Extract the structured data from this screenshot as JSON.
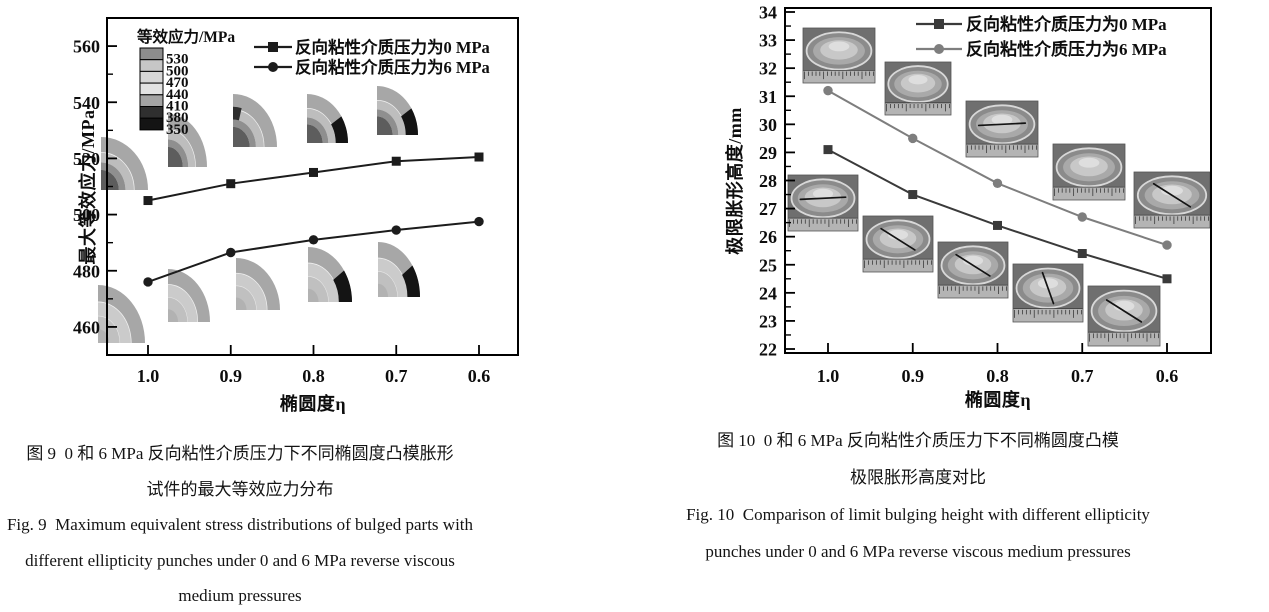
{
  "figures": {
    "left": {
      "caption_cn_line1": "图 9  0 和 6 MPa 反向粘性介质压力下不同椭圆度凸模胀形",
      "caption_cn_line2": "试件的最大等效应力分布",
      "caption_en_line1": "Fig. 9  Maximum equivalent stress distributions of bulged parts with",
      "caption_en_line2": "different ellipticity punches under 0 and 6 MPa reverse viscous",
      "caption_en_line3": "medium pressures"
    },
    "right": {
      "caption_cn_line1": "图 10  0 和 6 MPa 反向粘性介质压力下不同椭圆度凸模",
      "caption_cn_line2": "极限胀形高度对比",
      "caption_en_line1": "Fig. 10  Comparison of limit bulging height with different ellipticity",
      "caption_en_line2": "punches under 0 and 6 MPa reverse viscous medium pressures"
    }
  },
  "chart_data": [
    {
      "id": "fig9",
      "type": "line",
      "title": "",
      "xlabel": "椭圆度η",
      "ylabel": "最大等效应力/MPa",
      "x": [
        1.0,
        0.9,
        0.8,
        0.7,
        0.6
      ],
      "x_axis_direction": "decreasing",
      "ylim": [
        450,
        570
      ],
      "yticks": [
        460,
        480,
        500,
        520,
        540,
        560
      ],
      "ytick_minor_step": 10,
      "grid": false,
      "legend_position": "top-right inside",
      "series": [
        {
          "name": "反向粘性介质压力为0 MPa",
          "marker": "square",
          "color": "#1c1c1c",
          "values": [
            505,
            511,
            515,
            519,
            520.5
          ]
        },
        {
          "name": "反向粘性介质压力为6 MPa",
          "marker": "circle",
          "color": "#1c1c1c",
          "values": [
            476,
            486.5,
            491,
            494.5,
            497.5
          ]
        }
      ],
      "colorbar": {
        "title": "等效应力/MPa",
        "labels": [
          "530",
          "500",
          "470",
          "440",
          "410",
          "380",
          "350"
        ],
        "colors": [
          "#8d8d8d",
          "#c6c6c6",
          "#d7d7d7",
          "#e3e3e3",
          "#a4a4a4",
          "#2f2f2f",
          "#141414"
        ]
      },
      "insets_note": "10 quarter-section equivalent-stress contour plots, one per ellipticity for each pressure level"
    },
    {
      "id": "fig10",
      "type": "line",
      "title": "",
      "xlabel": "椭圆度η",
      "ylabel": "极限胀形高度/mm",
      "x": [
        1.0,
        0.9,
        0.8,
        0.7,
        0.6
      ],
      "x_axis_direction": "decreasing",
      "ylim": [
        22,
        34
      ],
      "yticks": [
        22,
        23,
        24,
        25,
        26,
        27,
        28,
        29,
        30,
        31,
        32,
        33,
        34
      ],
      "ytick_minor_step": 0.5,
      "grid": false,
      "legend_position": "top-right inside",
      "series": [
        {
          "name": "反向粘性介质压力为0 MPa",
          "marker": "square",
          "color": "#3a3a3a",
          "values": [
            29.1,
            27.5,
            26.4,
            25.4,
            24.5
          ]
        },
        {
          "name": "反向粘性介质压力为6 MPa",
          "marker": "circle",
          "color": "#7e7e7e",
          "values": [
            31.2,
            29.5,
            27.9,
            26.7,
            25.7
          ]
        }
      ],
      "insets_note": "10 photographs of bulged specimens with rulers, one per ellipticity for each pressure level"
    }
  ]
}
